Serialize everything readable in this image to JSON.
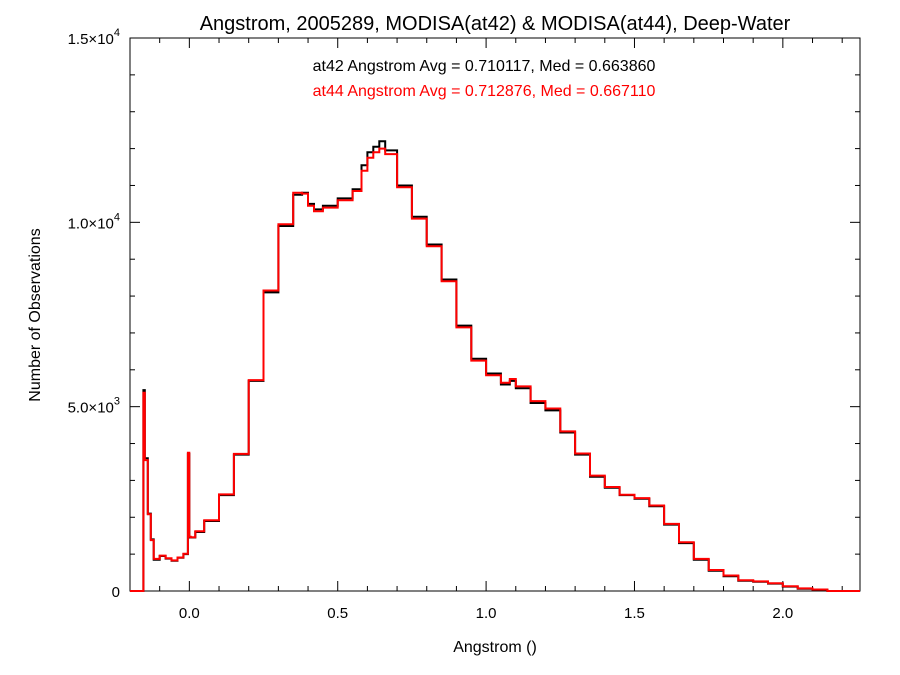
{
  "chart_data": {
    "type": "line",
    "title": "Angstrom, 2005289, MODISA(at42) & MODISA(at44), Deep-Water",
    "xlabel": "Angstrom ()",
    "ylabel": "Number of Observations",
    "xlim": [
      -0.2,
      2.26
    ],
    "ylim": [
      0,
      15000
    ],
    "x_ticks": [
      {
        "value": 0.0,
        "label": "0.0"
      },
      {
        "value": 0.5,
        "label": "0.5"
      },
      {
        "value": 1.0,
        "label": "1.0"
      },
      {
        "value": 1.5,
        "label": "1.5"
      },
      {
        "value": 2.0,
        "label": "2.0"
      }
    ],
    "y_ticks": [
      {
        "value": 0,
        "mantissa": "0",
        "exponent": ""
      },
      {
        "value": 5000,
        "mantissa": "5.0×10",
        "exponent": "3"
      },
      {
        "value": 10000,
        "mantissa": "1.0×10",
        "exponent": "4"
      },
      {
        "value": 15000,
        "mantissa": "1.5×10",
        "exponent": "4"
      }
    ],
    "annotations": [
      {
        "text": "at42 Angstrom Avg = 0.710117, Med = 0.663860",
        "color": "#000000"
      },
      {
        "text": "at44 Angstrom Avg = 0.712876, Med = 0.667110",
        "color": "#ff0000"
      }
    ],
    "grid": false,
    "step": true,
    "series": [
      {
        "name": "at42",
        "color": "#000000",
        "x": [
          -0.2,
          -0.16,
          -0.155,
          -0.15,
          -0.14,
          -0.13,
          -0.12,
          -0.1,
          -0.08,
          -0.06,
          -0.04,
          -0.02,
          -0.005,
          0.0,
          0.005,
          0.02,
          0.05,
          0.1,
          0.15,
          0.2,
          0.25,
          0.3,
          0.35,
          0.38,
          0.4,
          0.42,
          0.45,
          0.5,
          0.55,
          0.58,
          0.6,
          0.62,
          0.64,
          0.66,
          0.7,
          0.75,
          0.8,
          0.85,
          0.9,
          0.95,
          1.0,
          1.05,
          1.08,
          1.1,
          1.15,
          1.2,
          1.25,
          1.3,
          1.35,
          1.4,
          1.45,
          1.5,
          1.55,
          1.6,
          1.65,
          1.7,
          1.75,
          1.8,
          1.85,
          1.9,
          1.95,
          2.0,
          2.05,
          2.1,
          2.15,
          2.2,
          2.26
        ],
        "y": [
          0,
          0,
          5450,
          3600,
          2100,
          1400,
          850,
          950,
          880,
          820,
          900,
          1000,
          3720,
          1450,
          1450,
          1600,
          1900,
          2600,
          3700,
          5700,
          8100,
          9900,
          10750,
          10800,
          10500,
          10350,
          10450,
          10650,
          10900,
          11550,
          11900,
          12050,
          12200,
          11950,
          11000,
          10150,
          9400,
          8450,
          7200,
          6300,
          5900,
          5600,
          5700,
          5500,
          5100,
          4900,
          4300,
          3700,
          3100,
          2800,
          2600,
          2500,
          2300,
          1800,
          1300,
          850,
          550,
          400,
          280,
          250,
          200,
          120,
          60,
          30,
          0,
          0,
          0
        ]
      },
      {
        "name": "at44",
        "color": "#ff0000",
        "x": [
          -0.2,
          -0.16,
          -0.155,
          -0.15,
          -0.14,
          -0.13,
          -0.12,
          -0.1,
          -0.08,
          -0.06,
          -0.04,
          -0.02,
          -0.005,
          0.0,
          0.005,
          0.02,
          0.05,
          0.1,
          0.15,
          0.2,
          0.25,
          0.3,
          0.35,
          0.38,
          0.4,
          0.42,
          0.45,
          0.5,
          0.55,
          0.58,
          0.6,
          0.62,
          0.64,
          0.66,
          0.7,
          0.75,
          0.8,
          0.85,
          0.9,
          0.95,
          1.0,
          1.05,
          1.08,
          1.1,
          1.15,
          1.2,
          1.25,
          1.3,
          1.35,
          1.4,
          1.45,
          1.5,
          1.55,
          1.6,
          1.65,
          1.7,
          1.75,
          1.8,
          1.85,
          1.9,
          1.95,
          2.0,
          2.05,
          2.1,
          2.15,
          2.2,
          2.26
        ],
        "y": [
          0,
          0,
          5380,
          3550,
          2080,
          1380,
          870,
          960,
          890,
          830,
          910,
          1010,
          3750,
          1470,
          1460,
          1620,
          1920,
          2620,
          3720,
          5720,
          8150,
          9950,
          10800,
          10780,
          10450,
          10300,
          10400,
          10600,
          10850,
          11400,
          11750,
          11900,
          12000,
          11850,
          10950,
          10100,
          9350,
          8400,
          7150,
          6250,
          5850,
          5650,
          5750,
          5550,
          5150,
          4950,
          4330,
          3730,
          3130,
          2820,
          2610,
          2520,
          2320,
          1820,
          1320,
          870,
          570,
          420,
          290,
          260,
          210,
          130,
          70,
          40,
          0,
          0,
          0
        ]
      }
    ]
  }
}
